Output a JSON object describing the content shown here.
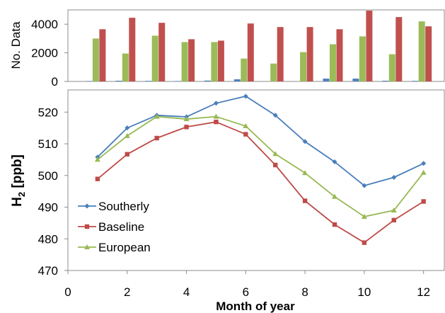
{
  "chart_data": [
    {
      "type": "bar",
      "ylabel": "No. Data",
      "ylim": [
        0,
        5000
      ],
      "yticks": [
        0,
        2000,
        4000
      ],
      "x": [
        1,
        2,
        3,
        4,
        5,
        6,
        7,
        8,
        9,
        10,
        11,
        12
      ],
      "series": [
        {
          "color": "#4f81bd",
          "values": [
            30,
            50,
            40,
            30,
            60,
            150,
            0,
            0,
            200,
            200,
            50,
            40
          ]
        },
        {
          "color": "#9bbb59",
          "values": [
            3000,
            1950,
            3200,
            2750,
            2750,
            1600,
            1250,
            2050,
            2600,
            3150,
            1900,
            4200
          ]
        },
        {
          "color": "#c0504d",
          "values": [
            3650,
            4450,
            4100,
            2950,
            2850,
            4050,
            3800,
            3800,
            3650,
            4950,
            4500,
            3850
          ]
        }
      ]
    },
    {
      "type": "line",
      "xlabel": "Month of year",
      "ylabel": "H",
      "ylabel_sub": "2",
      "ylabel_suffix": " [ppb]",
      "xlim": [
        0,
        12.7
      ],
      "ylim": [
        470,
        527
      ],
      "xticks": [
        0,
        2,
        4,
        6,
        8,
        10,
        12
      ],
      "yticks": [
        470,
        480,
        490,
        500,
        510,
        520
      ],
      "legend_position": "bottom-left",
      "x": [
        1,
        2,
        3,
        4,
        5,
        6,
        7,
        8,
        9,
        10,
        11,
        12
      ],
      "series": [
        {
          "name": "Southerly",
          "color": "#4a7ebb",
          "marker": "diamond",
          "values": [
            505.8,
            515.0,
            519.0,
            518.5,
            522.8,
            525.0,
            519.0,
            510.7,
            504.3,
            496.8,
            499.4,
            503.8
          ]
        },
        {
          "name": "Baseline",
          "color": "#be4b48",
          "marker": "square",
          "values": [
            498.9,
            506.7,
            511.8,
            515.3,
            516.9,
            513.0,
            503.3,
            492.0,
            484.5,
            478.8,
            485.9,
            491.8
          ]
        },
        {
          "name": "European",
          "color": "#98b954",
          "marker": "triangle",
          "values": [
            505.0,
            512.5,
            518.6,
            517.8,
            518.6,
            515.6,
            506.8,
            500.8,
            493.3,
            487.0,
            489.0,
            500.9
          ]
        }
      ]
    }
  ]
}
